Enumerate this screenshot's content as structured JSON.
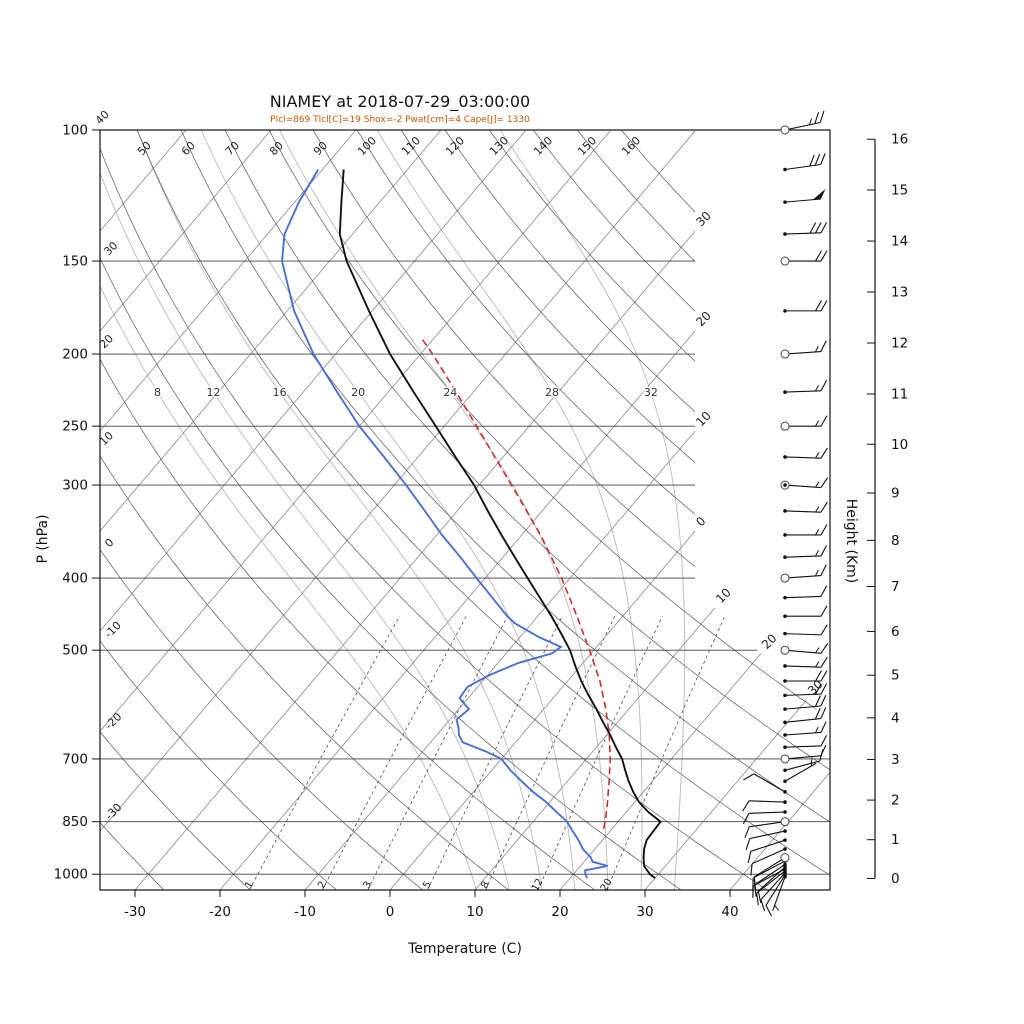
{
  "header": {
    "title": "NIAMEY at 2018-07-29_03:00:00",
    "params_line": "Plcl=869 Tlcl[C]=19 Shox=-2 Pwat[cm]=4 Cape[J]= 1330",
    "params_color": "#c85500"
  },
  "axes": {
    "pressure_label": "P (hPa)",
    "temperature_label": "Temperature (C)",
    "height_label": "Height (Km)"
  },
  "chart_data": {
    "type": "skewt_log_p_sounding",
    "station": "NIAMEY",
    "datetime": "2018-07-29_03:00:00",
    "indices": {
      "plcl_hpa": 869,
      "tlcl_c": 19,
      "showalter": -2,
      "pwat_cm": 4,
      "cape_j": 1330
    },
    "pressure_ticks": [
      100,
      150,
      200,
      250,
      300,
      400,
      500,
      700,
      850,
      1000
    ],
    "temperature_ticks": [
      -30,
      -20,
      -10,
      0,
      10,
      20,
      30,
      40
    ],
    "height_ticks_km": [
      0,
      1,
      2,
      3,
      4,
      5,
      6,
      7,
      8,
      9,
      10,
      11,
      12,
      13,
      14,
      15,
      16
    ],
    "height_tick_pressures": [
      1013.2,
      898.7,
      795.0,
      701.1,
      616.4,
      540.2,
      471.8,
      410.6,
      356.0,
      307.4,
      264.4,
      226.3,
      193.3,
      165.1,
      141.0,
      120.4,
      102.9
    ],
    "pressure_top_hpa": 100,
    "pressure_bottom_hpa": 1050,
    "isotherm_step_c": 10,
    "dry_adiabats_c": [
      -30,
      -20,
      -10,
      0,
      10,
      20,
      30,
      40,
      50,
      60,
      70,
      80,
      90,
      100,
      110,
      120,
      130,
      140,
      150,
      160
    ],
    "moist_adiabats_c": [
      8,
      12,
      16,
      20,
      24,
      28,
      32
    ],
    "mixing_ratio_gkg": [
      1,
      2,
      3,
      5,
      8,
      12,
      20
    ],
    "isot_edge_labels": [
      {
        "t": -30,
        "text": "30"
      },
      {
        "t": -20,
        "text": "20"
      },
      {
        "t": -10,
        "text": "10"
      },
      {
        "t": 0,
        "text": "0"
      },
      {
        "t": 10,
        "text": "10"
      },
      {
        "t": 20,
        "text": "20"
      },
      {
        "t": 30,
        "text": "30"
      }
    ],
    "temperature_profile": [
      [
        1012,
        30.0
      ],
      [
        1000,
        29.0
      ],
      [
        975,
        27.5
      ],
      [
        950,
        26.6
      ],
      [
        925,
        25.8
      ],
      [
        900,
        25.2
      ],
      [
        875,
        25.1
      ],
      [
        850,
        25.0
      ],
      [
        825,
        22.6
      ],
      [
        800,
        20.5
      ],
      [
        775,
        18.8
      ],
      [
        750,
        17.2
      ],
      [
        725,
        15.7
      ],
      [
        700,
        14.2
      ],
      [
        675,
        12.3
      ],
      [
        650,
        10.4
      ],
      [
        625,
        8.3
      ],
      [
        600,
        6.2
      ],
      [
        575,
        3.9
      ],
      [
        550,
        1.6
      ],
      [
        525,
        -0.6
      ],
      [
        500,
        -2.8
      ],
      [
        475,
        -5.5
      ],
      [
        450,
        -8.4
      ],
      [
        425,
        -11.6
      ],
      [
        400,
        -15.0
      ],
      [
        375,
        -18.6
      ],
      [
        350,
        -22.4
      ],
      [
        325,
        -26.4
      ],
      [
        300,
        -30.6
      ],
      [
        275,
        -35.6
      ],
      [
        250,
        -41.0
      ],
      [
        225,
        -47.0
      ],
      [
        200,
        -53.6
      ],
      [
        175,
        -60.4
      ],
      [
        150,
        -68.0
      ],
      [
        138,
        -71.5
      ],
      [
        125,
        -74.5
      ],
      [
        113,
        -77.5
      ]
    ],
    "dewpoint_profile": [
      [
        1012,
        22.0
      ],
      [
        1000,
        21.4
      ],
      [
        988,
        21.0
      ],
      [
        975,
        23.2
      ],
      [
        962,
        21.0
      ],
      [
        950,
        20.4
      ],
      [
        925,
        18.6
      ],
      [
        900,
        17.2
      ],
      [
        875,
        15.6
      ],
      [
        850,
        14.0
      ],
      [
        825,
        11.8
      ],
      [
        800,
        9.6
      ],
      [
        775,
        7.0
      ],
      [
        750,
        4.6
      ],
      [
        725,
        2.2
      ],
      [
        700,
        0.0
      ],
      [
        685,
        -2.4
      ],
      [
        665,
        -6.2
      ],
      [
        650,
        -7.4
      ],
      [
        635,
        -8.2
      ],
      [
        620,
        -9.2
      ],
      [
        600,
        -8.8
      ],
      [
        580,
        -11.0
      ],
      [
        560,
        -11.2
      ],
      [
        540,
        -9.8
      ],
      [
        520,
        -7.6
      ],
      [
        505,
        -4.6
      ],
      [
        495,
        -4.2
      ],
      [
        480,
        -7.8
      ],
      [
        460,
        -12.0
      ],
      [
        450,
        -13.6
      ],
      [
        425,
        -17.2
      ],
      [
        400,
        -21.0
      ],
      [
        375,
        -25.0
      ],
      [
        350,
        -29.4
      ],
      [
        325,
        -33.8
      ],
      [
        300,
        -38.6
      ],
      [
        275,
        -44.0
      ],
      [
        250,
        -50.0
      ],
      [
        225,
        -56.0
      ],
      [
        200,
        -62.6
      ],
      [
        175,
        -69.2
      ],
      [
        150,
        -75.6
      ],
      [
        138,
        -78.0
      ],
      [
        125,
        -79.5
      ],
      [
        113,
        -80.5
      ]
    ],
    "parcel_profile": [
      [
        869,
        19.0
      ],
      [
        850,
        18.5
      ],
      [
        800,
        16.8
      ],
      [
        750,
        14.9
      ],
      [
        700,
        12.8
      ],
      [
        650,
        10.3
      ],
      [
        600,
        7.3
      ],
      [
        550,
        3.8
      ],
      [
        500,
        -0.5
      ],
      [
        450,
        -5.4
      ],
      [
        400,
        -11.0
      ],
      [
        350,
        -17.8
      ],
      [
        300,
        -26.2
      ],
      [
        250,
        -36.2
      ],
      [
        225,
        -42.0
      ],
      [
        200,
        -48.6
      ],
      [
        190,
        -51.6
      ]
    ],
    "winds": [
      [
        1008,
        200,
        5,
        "dot"
      ],
      [
        1002,
        212,
        8,
        "dot"
      ],
      [
        996,
        222,
        10,
        "dot"
      ],
      [
        990,
        232,
        10,
        "dot"
      ],
      [
        984,
        242,
        12,
        "dot"
      ],
      [
        978,
        228,
        10,
        "dot"
      ],
      [
        970,
        236,
        12,
        "dot"
      ],
      [
        960,
        242,
        10,
        "dot"
      ],
      [
        950,
        238,
        12,
        "circle"
      ],
      [
        925,
        246,
        12,
        "dot"
      ],
      [
        900,
        252,
        10,
        "dot"
      ],
      [
        875,
        258,
        10,
        "dot"
      ],
      [
        850,
        262,
        10,
        "circle"
      ],
      [
        825,
        268,
        10,
        "dot"
      ],
      [
        800,
        272,
        12,
        "dot"
      ],
      [
        775,
        300,
        8,
        "dot"
      ],
      [
        750,
        60,
        5,
        "dot"
      ],
      [
        725,
        75,
        8,
        "dot"
      ],
      [
        700,
        85,
        10,
        "circle"
      ],
      [
        675,
        88,
        12,
        "dot"
      ],
      [
        650,
        86,
        15,
        "dot"
      ],
      [
        625,
        84,
        18,
        "dot"
      ],
      [
        600,
        85,
        20,
        "dot"
      ],
      [
        575,
        88,
        18,
        "dot"
      ],
      [
        550,
        90,
        18,
        "dot"
      ],
      [
        525,
        92,
        15,
        "dot"
      ],
      [
        500,
        95,
        15,
        "circle"
      ],
      [
        475,
        92,
        12,
        "dot"
      ],
      [
        450,
        90,
        10,
        "dot"
      ],
      [
        425,
        88,
        12,
        "dot"
      ],
      [
        400,
        86,
        14,
        "circle"
      ],
      [
        375,
        88,
        14,
        "dot"
      ],
      [
        350,
        90,
        15,
        "dot"
      ],
      [
        325,
        92,
        15,
        "dot"
      ],
      [
        300,
        94,
        16,
        "circle-dot"
      ],
      [
        275,
        92,
        15,
        "dot"
      ],
      [
        250,
        90,
        15,
        "circle"
      ],
      [
        225,
        88,
        15,
        "dot"
      ],
      [
        200,
        86,
        16,
        "circle"
      ],
      [
        175,
        90,
        18,
        "dot"
      ],
      [
        150,
        90,
        22,
        "circle"
      ],
      [
        138,
        88,
        28,
        "dot"
      ],
      [
        125,
        85,
        50,
        "dot"
      ],
      [
        113,
        82,
        32,
        "dot"
      ],
      [
        100,
        78,
        25,
        "circle"
      ]
    ],
    "colors": {
      "temperature": "#111111",
      "dewpoint": "#4a6fce",
      "parcel": "#cc2f2f",
      "grid_isotherm": "#888888",
      "grid_dry_adiabat": "#555555",
      "grid_moist_adiabat": "#b8b8b8",
      "grid_mixing_ratio": "#333333",
      "background": "#ffffff"
    }
  }
}
